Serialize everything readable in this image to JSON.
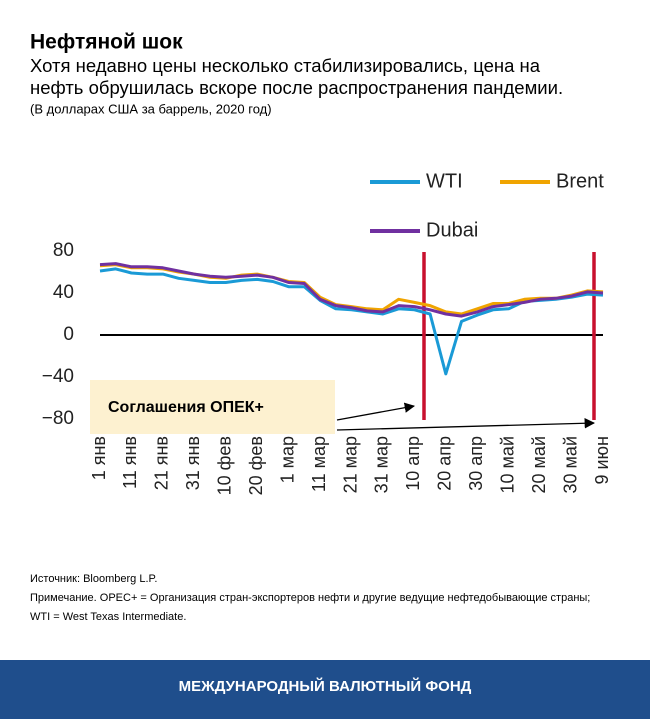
{
  "chart_data": {
    "type": "line",
    "title": "Нефтяной шок",
    "subtitle": [
      "Хотя недавно цены несколько стабилизировались, цена на",
      "нефть обрушилась вскоре после распространения пандемии."
    ],
    "units_note": "(В долларах США за баррель, 2020 год)",
    "categories": [
      "1 янв",
      null,
      "11 янв",
      null,
      "21 янв",
      null,
      "31 янв",
      null,
      "10 фев",
      null,
      "20 фев",
      null,
      "1 мар",
      null,
      "11 мар",
      null,
      "21 мар",
      null,
      "31 мар",
      null,
      "10 апр",
      null,
      "20 апр",
      null,
      "30 апр",
      null,
      "10 май",
      null,
      "20 май",
      null,
      "30 май",
      null,
      "9 июн"
    ],
    "series": [
      {
        "name": "WTI",
        "color": "#1a9ad6",
        "values": [
          61,
          63,
          59,
          58,
          58,
          54,
          52,
          50,
          50,
          52,
          53,
          51,
          46,
          46,
          33,
          25,
          24,
          22,
          20,
          25,
          24,
          20,
          -37,
          13,
          19,
          24,
          25,
          32,
          33,
          34,
          36,
          39,
          38
        ]
      },
      {
        "name": "Brent",
        "color": "#f0a400",
        "values": [
          66,
          67,
          64,
          64,
          63,
          60,
          58,
          55,
          54,
          57,
          58,
          55,
          51,
          50,
          36,
          29,
          27,
          25,
          24,
          34,
          31,
          28,
          22,
          20,
          25,
          30,
          30,
          34,
          35,
          35,
          38,
          42,
          41
        ]
      },
      {
        "name": "Dubai",
        "color": "#7030a0",
        "values": [
          67,
          68,
          65,
          65,
          64,
          61,
          58,
          56,
          55,
          56,
          57,
          55,
          50,
          49,
          34,
          28,
          26,
          23,
          22,
          28,
          27,
          24,
          20,
          18,
          22,
          27,
          29,
          31,
          34,
          35,
          37,
          41,
          40
        ]
      }
    ],
    "ylim": [
      -80,
      80
    ],
    "yticks": [
      80,
      40,
      0,
      {
        "value": -40,
        "label": "−40"
      },
      {
        "value": -80,
        "label": "−80"
      }
    ],
    "annotation": "Соглашения ОПЕК+",
    "source": "Источник: Bloomberg L.P.",
    "notes": [
      "Примечание. OPEC+ = Организация стран-экспортеров нефти и другие ведущие нефтедобывающие страны;",
      "WTI = West Texas Intermediate."
    ],
    "footer": "МЕЖДУНАРОДНЫЙ ВАЛЮТНЫЙ ФОНД"
  }
}
